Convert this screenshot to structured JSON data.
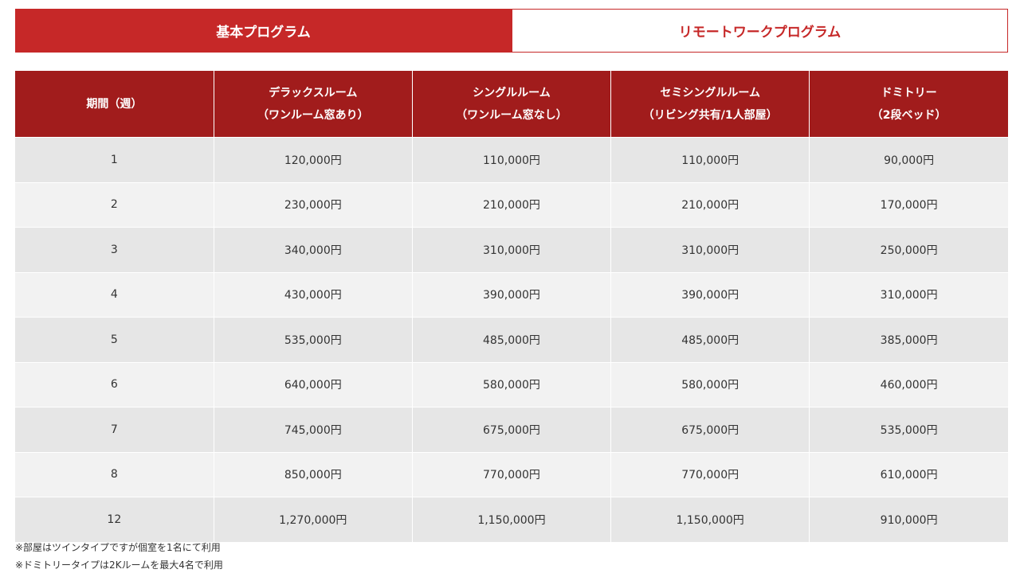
{
  "tabs": [
    {
      "label": "基本プログラム",
      "active": true
    },
    {
      "label": "リモートワークプログラム",
      "active": false
    }
  ],
  "colors": {
    "accent": "#c62828",
    "header_bg": "#a11c1c",
    "row_odd": "#e6e6e6",
    "row_even": "#f2f2f2"
  },
  "table": {
    "headers": [
      {
        "line1": "期間（週）",
        "line2": ""
      },
      {
        "line1": "デラックスルーム",
        "line2": "（ワンルーム窓あり）"
      },
      {
        "line1": "シングルルーム",
        "line2": "（ワンルーム窓なし）"
      },
      {
        "line1": "セミシングルルーム",
        "line2": "（リビング共有/1人部屋）"
      },
      {
        "line1": "ドミトリー",
        "line2": "（2段ベッド）"
      }
    ],
    "rows": [
      [
        "1",
        "120,000円",
        "110,000円",
        "110,000円",
        "90,000円"
      ],
      [
        "2",
        "230,000円",
        "210,000円",
        "210,000円",
        "170,000円"
      ],
      [
        "3",
        "340,000円",
        "310,000円",
        "310,000円",
        "250,000円"
      ],
      [
        "4",
        "430,000円",
        "390,000円",
        "390,000円",
        "310,000円"
      ],
      [
        "5",
        "535,000円",
        "485,000円",
        "485,000円",
        "385,000円"
      ],
      [
        "6",
        "640,000円",
        "580,000円",
        "580,000円",
        "460,000円"
      ],
      [
        "7",
        "745,000円",
        "675,000円",
        "675,000円",
        "535,000円"
      ],
      [
        "8",
        "850,000円",
        "770,000円",
        "770,000円",
        "610,000円"
      ],
      [
        "12",
        "1,270,000円",
        "1,150,000円",
        "1,150,000円",
        "910,000円"
      ]
    ]
  },
  "notes": [
    "※部屋はツインタイプですが個室を1名にて利用",
    "※ドミトリータイプは2Kルームを最大4名で利用"
  ]
}
